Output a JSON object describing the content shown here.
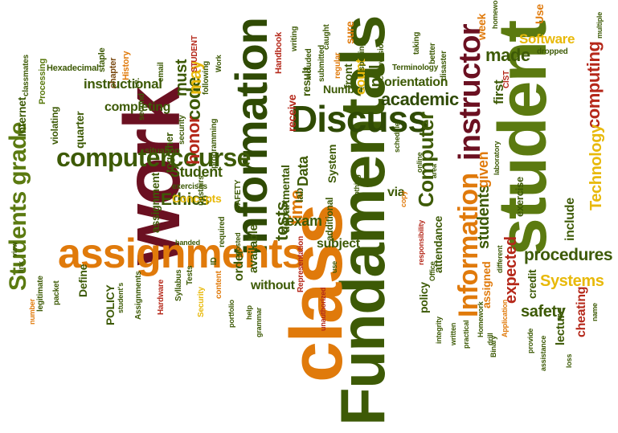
{
  "words": {
    "fundamentals": "Fundamentals",
    "class": "class",
    "work": "work",
    "student": "student",
    "information": "information",
    "assignments": "assignments",
    "discuss": "Discuss",
    "instructor": "instructor",
    "information_cap": "Information",
    "computercourse": "computercourse",
    "students_grade": "Students grade",
    "computer": "Computer",
    "academic": "academic",
    "procedures": "procedures",
    "systems": "Systems",
    "safety": "safety",
    "expected": "expected",
    "students": "students",
    "tests": "tests",
    "time": "time",
    "computing": "computing",
    "technology": "Technology",
    "software": "Software",
    "made": "made",
    "code": "code",
    "honor": "honor",
    "ethics": "Ethics",
    "concepts": "Concepts",
    "student_cap": "Student",
    "instructional": "instructional",
    "completing": "completing",
    "must": "must",
    "may": "may",
    "exam": "exam",
    "subject": "subject",
    "without": "without",
    "order": "order",
    "available": "available",
    "departmental": "departmental",
    "data": "Data",
    "lab": "lab",
    "number": "Number",
    "orientation": "orientation",
    "final": "final",
    "count": "count",
    "front": "front",
    "receive": "receive",
    "result": "result",
    "via": "via",
    "system": "System",
    "additional": "additional",
    "attendance": "attendance",
    "policy": "policy",
    "assigned": "assigned",
    "credit": "credit",
    "include": "include",
    "cheating": "cheating",
    "lecture": "lecture",
    "given": "given",
    "first": "first",
    "week": "week",
    "use": "Use",
    "exercise": "exercise",
    "internet": "Internet",
    "quarter": "quarter",
    "violating": "violating",
    "assignment": "assignment",
    "define": "Define",
    "policy_caps": "POLICY",
    "together": "together",
    "processing": "Processing",
    "hexadecimal": "Hexadecimal",
    "chapter": "chapter",
    "history": "History",
    "staple": "staple",
    "classmates": "classmates",
    "handbook": "Handbook",
    "writing": "writing",
    "caught": "caught",
    "sure": "sure",
    "included": "included",
    "submitted": "submitted",
    "regular": "regular",
    "spelling": "spelling",
    "conversion": "conversion",
    "taking": "taking",
    "better": "better",
    "disaster": "disaster",
    "terminology": "Terminology",
    "homework": "homework",
    "dropped": "dropped",
    "multiple": "multiple",
    "cist": "CIST",
    "security": "security",
    "following": "following",
    "student_caps": "STUDENT",
    "email": "email",
    "second": "second",
    "ie": "i.e.",
    "situation": "situation",
    "exercises": "exercises",
    "upstairs": "upstairs",
    "hardware": "Hardware",
    "assignments_cap": "Assignments",
    "syllabus": "Syllabus",
    "tests_cap": "Tests",
    "security_cap": "Security",
    "id": "ID",
    "required": "required",
    "handed": "handed",
    "view": "view",
    "link": "link",
    "legitimate": "legitimate",
    "packet": "packet",
    "number_lc": "number",
    "content": "content",
    "posted": "posted",
    "help": "help",
    "portfolio": "portfolio",
    "grammar": "grammar",
    "representation": "Representation",
    "unauthorized": "unauthorized",
    "use_lc": "use",
    "online": "online",
    "copy": "copy",
    "nothing": "Nothing",
    "responsibility": "responsibility",
    "office": "Office",
    "integrity": "integrity",
    "written": "written",
    "practical": "practical",
    "homework_cap": "Homework",
    "binary": "Binary",
    "application": "Application",
    "drill": "drill",
    "different": "different",
    "laboratory": "laboratory",
    "area": "area",
    "schedule": "schedule",
    "provide": "provide",
    "assistance": "assistance",
    "loss": "loss",
    "name": "name",
    "programming": "programming",
    "work_cap": "Work",
    "safety_caps": "SAFETY",
    "students_poss": "student's"
  },
  "colors": {
    "olive": "#3d5a06",
    "green": "#5b7a10",
    "orange": "#e07a0b",
    "yellow": "#e8b90a",
    "maroon": "#6b1021",
    "red": "#b5281a"
  }
}
